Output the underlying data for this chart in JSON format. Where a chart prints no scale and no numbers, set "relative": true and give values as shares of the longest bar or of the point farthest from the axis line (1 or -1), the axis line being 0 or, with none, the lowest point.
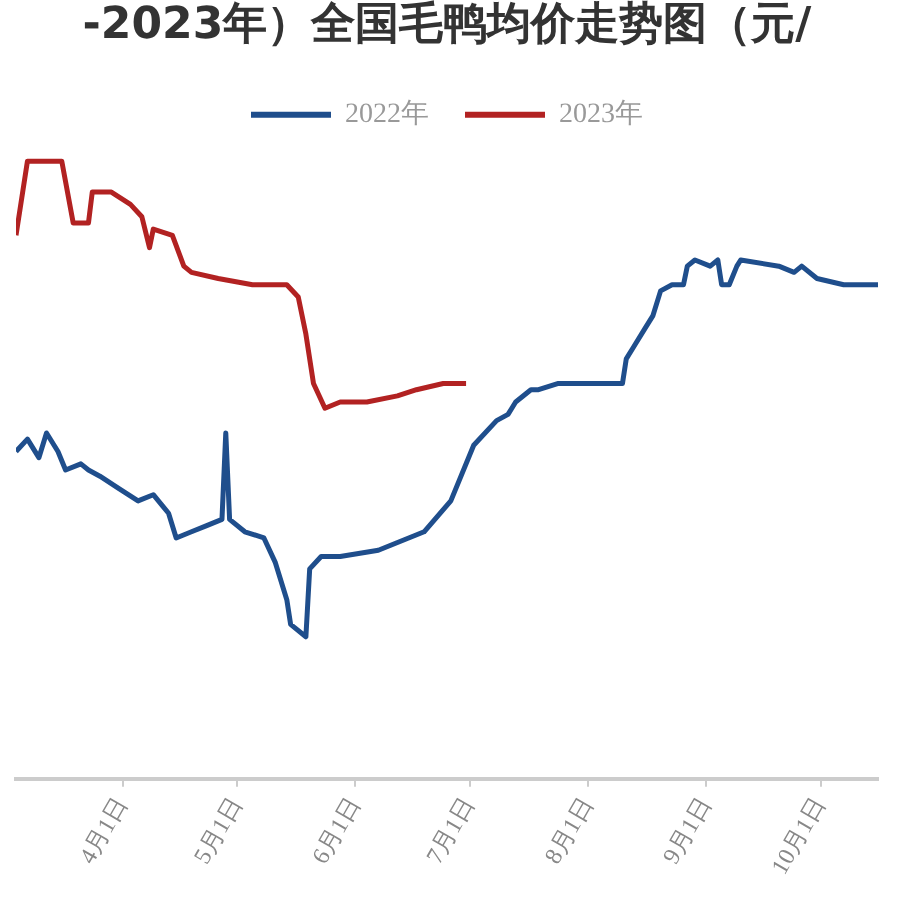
{
  "chart_data": {
    "type": "line",
    "title": "-2023年）全国毛鸭均价走势图（元/",
    "relative": true,
    "legend": "top",
    "grid": false,
    "marker": "none",
    "line_style": "solid",
    "xlim": [
      "--03-04",
      "--10-16"
    ],
    "xticks": [
      {
        "value": "--04-01",
        "label": "4月1日"
      },
      {
        "value": "--05-01",
        "label": "5月1日"
      },
      {
        "value": "--06-01",
        "label": "6月1日"
      },
      {
        "value": "--07-01",
        "label": "7月1日"
      },
      {
        "value": "--08-01",
        "label": "8月1日"
      },
      {
        "value": "--09-01",
        "label": "9月1日"
      },
      {
        "value": "--10-01",
        "label": "10月1日"
      }
    ],
    "series": [
      {
        "name": "2022年",
        "color": "#1f4e8c",
        "x": [
          "--03-04",
          "--03-07",
          "--03-10",
          "--03-12",
          "--03-15",
          "--03-17",
          "--03-21",
          "--03-23",
          "--03-26",
          "--03-31",
          "--04-05",
          "--04-09",
          "--04-13",
          "--04-15",
          "--04-19",
          "--04-23",
          "--04-27",
          "--04-28",
          "--04-29",
          "--05-03",
          "--05-08",
          "--05-11",
          "--05-14",
          "--05-15",
          "--05-19",
          "--05-20",
          "--05-23",
          "--05-28",
          "--06-07",
          "--06-19",
          "--06-26",
          "--07-02",
          "--07-08",
          "--07-11",
          "--07-13",
          "--07-17",
          "--07-19",
          "--07-24",
          "--07-29",
          "--08-10",
          "--08-11",
          "--08-13",
          "--08-16",
          "--08-18",
          "--08-20",
          "--08-23",
          "--08-26",
          "--08-27",
          "--08-29",
          "--09-02",
          "--09-04",
          "--09-05",
          "--09-07",
          "--09-09",
          "--09-10",
          "--09-20",
          "--09-24",
          "--09-26",
          "--09-30",
          "--10-07",
          "--10-10",
          "--10-16"
        ],
        "values": [
          0.53,
          0.55,
          0.52,
          0.56,
          0.53,
          0.5,
          0.51,
          0.5,
          0.49,
          0.47,
          0.45,
          0.46,
          0.43,
          0.39,
          0.4,
          0.41,
          0.42,
          0.56,
          0.42,
          0.4,
          0.39,
          0.35,
          0.29,
          0.25,
          0.23,
          0.34,
          0.36,
          0.36,
          0.37,
          0.4,
          0.45,
          0.54,
          0.58,
          0.59,
          0.61,
          0.63,
          0.63,
          0.64,
          0.64,
          0.64,
          0.68,
          0.7,
          0.73,
          0.75,
          0.79,
          0.8,
          0.8,
          0.83,
          0.84,
          0.83,
          0.84,
          0.8,
          0.8,
          0.83,
          0.84,
          0.83,
          0.82,
          0.83,
          0.81,
          0.8,
          0.8,
          0.8
        ]
      },
      {
        "name": "2023年",
        "color": "#b22222",
        "x": [
          "--03-04",
          "--03-07",
          "--03-16",
          "--03-19",
          "--03-23",
          "--03-24",
          "--03-29",
          "--04-03",
          "--04-06",
          "--04-08",
          "--04-09",
          "--04-14",
          "--04-17",
          "--04-19",
          "--04-26",
          "--05-05",
          "--05-09",
          "--05-14",
          "--05-17",
          "--05-19",
          "--05-21",
          "--05-24",
          "--05-28",
          "--06-04",
          "--06-12",
          "--06-17",
          "--06-24",
          "--06-30"
        ],
        "values": [
          0.88,
          1,
          1,
          0.9,
          0.9,
          0.95,
          0.95,
          0.93,
          0.91,
          0.86,
          0.89,
          0.88,
          0.83,
          0.82,
          0.81,
          0.8,
          0.8,
          0.8,
          0.78,
          0.72,
          0.64,
          0.6,
          0.61,
          0.61,
          0.62,
          0.63,
          0.64,
          0.64
        ]
      }
    ]
  }
}
